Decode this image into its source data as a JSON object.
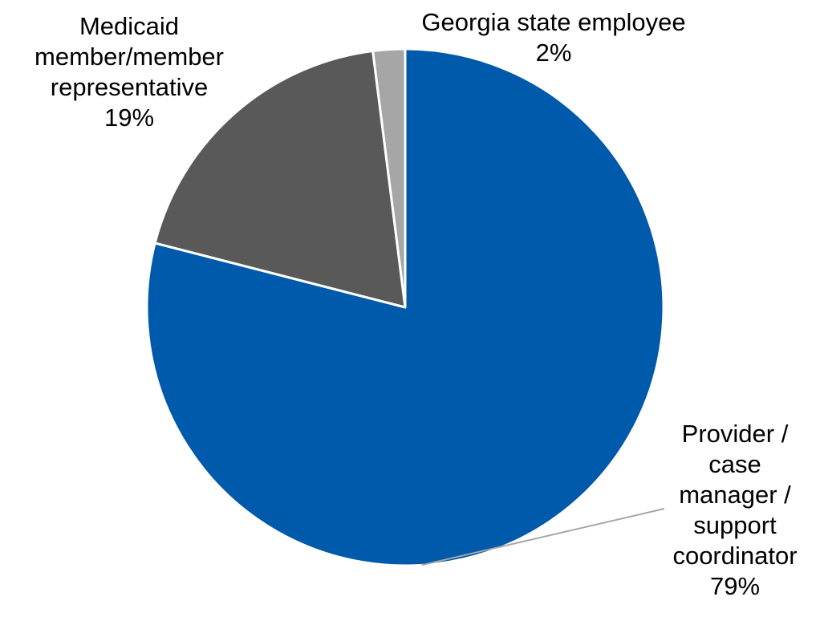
{
  "chart_data": {
    "type": "pie",
    "title": "",
    "legend": "none",
    "slices": [
      {
        "name_lines": [
          "Provider /",
          "case",
          "manager /",
          "support",
          "coordinator"
        ],
        "value": 79,
        "value_label": "79%",
        "color": "#005aab"
      },
      {
        "name_lines": [
          "Medicaid",
          "member/member",
          "representative"
        ],
        "value": 19,
        "value_label": "19%",
        "color": "#595959"
      },
      {
        "name_lines": [
          "Georgia state employee"
        ],
        "value": 2,
        "value_label": "2%",
        "color": "#a6a6a6"
      }
    ],
    "slice_border_color": "#ffffff",
    "leader_line_color": "#a6a6a6"
  }
}
